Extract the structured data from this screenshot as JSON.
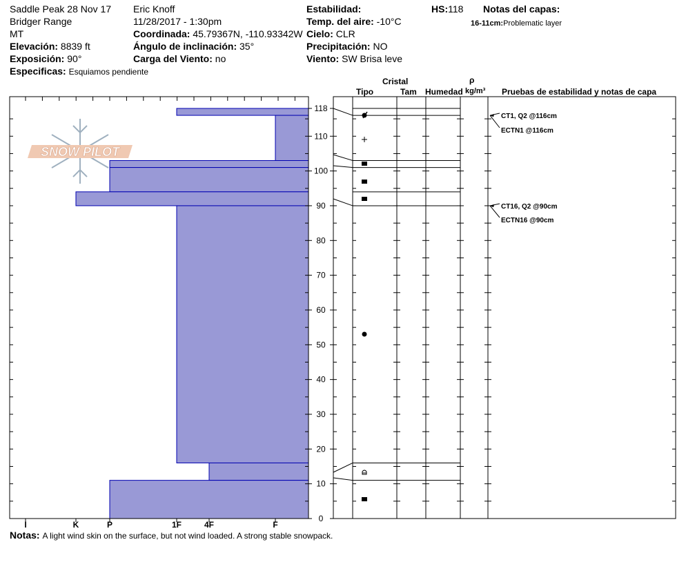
{
  "header": {
    "location": "Saddle Peak 28 Nov 17",
    "range": "Bridger Range",
    "state": "MT",
    "elevation_label": "Elevación:",
    "elevation_value": "8839 ft",
    "aspect_label": "Exposición:",
    "aspect_value": "90°",
    "specifics_label": "Especificas:",
    "specifics_value": "Esquiamos pendiente",
    "observer": "Eric Knoff",
    "datetime": "11/28/2017 - 1:30pm",
    "coord_label": "Coordinada:",
    "coord_value": "45.79367N, -110.93342W",
    "incline_label": "Ángulo de inclinación:",
    "incline_value": "35°",
    "wind_load_label": "Carga del Viento:",
    "wind_load_value": "no",
    "stability_label": "Estabilidad:",
    "air_temp_label": "Temp. del aire:",
    "air_temp_value": "-10°C",
    "sky_label": "Cielo:",
    "sky_value": "CLR",
    "precip_label": "Precipitación:",
    "precip_value": "NO",
    "wind_label": "Viento:",
    "wind_value": "SW Brisa leve",
    "hs_label": "HS:",
    "hs_value": "118",
    "layer_notes_label": "Notas del capas:",
    "layer_note_range": "16-11cm:",
    "layer_note_text": "Problematic layer"
  },
  "logo": {
    "text": "SNOW PILOT"
  },
  "columns": {
    "crystal": "Cristal",
    "type": "Tipo",
    "size": "Tam",
    "moisture": "Humedad",
    "rho": "ρ",
    "density_unit": "kg/m³",
    "tests": "Pruebas de estabilidad y notas de capa"
  },
  "notes": {
    "label": "Notas:",
    "text": "A light wind skin on the surface, but not wind loaded. A strong stable snowpack."
  },
  "colors": {
    "layer_fill": "#9999d6",
    "layer_stroke": "#0000b0"
  },
  "chart_data": {
    "type": "bar",
    "title": "",
    "xlabel": "",
    "ylabel": "",
    "orientation": "horizontal",
    "y_ticks": [
      0,
      10,
      20,
      30,
      40,
      50,
      60,
      70,
      80,
      90,
      100,
      110,
      118
    ],
    "ylim": [
      0,
      118
    ],
    "hardness_scale": [
      "I",
      "K",
      "P",
      "1F",
      "4F",
      "F"
    ],
    "layers": [
      {
        "top": 118,
        "bottom": 116,
        "hardness": "1F",
        "grain": "rounded-faceted"
      },
      {
        "top": 116,
        "bottom": 103,
        "hardness": "F",
        "grain": "precipitation"
      },
      {
        "top": 103,
        "bottom": 101,
        "hardness": "P",
        "grain": "faceted"
      },
      {
        "top": 101,
        "bottom": 94,
        "hardness": "P",
        "grain": "faceted"
      },
      {
        "top": 94,
        "bottom": 90,
        "hardness": "K-",
        "grain": "faceted"
      },
      {
        "top": 90,
        "bottom": 16,
        "hardness": "1F",
        "grain": "rounded"
      },
      {
        "top": 16,
        "bottom": 11,
        "hardness": "4F",
        "grain": "depth-hoar"
      },
      {
        "top": 11,
        "bottom": 0,
        "hardness": "P",
        "grain": "faceted"
      }
    ],
    "stability_tests": [
      {
        "label": "CT1, Q2 @116cm",
        "depth": 116
      },
      {
        "label": "ECTN1 @116cm",
        "depth": 116
      },
      {
        "label": "CT16, Q2 @90cm",
        "depth": 90
      },
      {
        "label": "ECTN16 @90cm",
        "depth": 90
      }
    ]
  }
}
